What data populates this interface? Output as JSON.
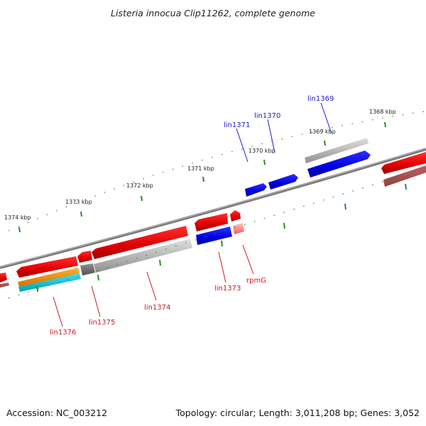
{
  "title": "Listeria innocua Clip11262, complete genome",
  "footer": {
    "accession": "Accession: NC_003212",
    "topology": "Topology: circular; Length: 3,011,208 bp; Genes: 3,052"
  },
  "ticks": [
    "1368 kbp",
    "1369 kbp",
    "1370 kbp",
    "1371 kbp",
    "1372 kbp",
    "1373 kbp",
    "1374 kbp"
  ],
  "genes_forward_strand": [
    "lin1369",
    "lin1370",
    "lin1371"
  ],
  "genes_reverse_strand": [
    "lin1373",
    "rpmG",
    "lin1374",
    "lin1375",
    "lin1376"
  ],
  "colors": {
    "cds_reverse": "#ee0000",
    "cds_forward": "#0000ee",
    "gene": "#b0b0b0",
    "rRNA": "#ff9900",
    "tRNA": "#00bbcc",
    "backbone": "#808080",
    "tick": "#228822"
  }
}
